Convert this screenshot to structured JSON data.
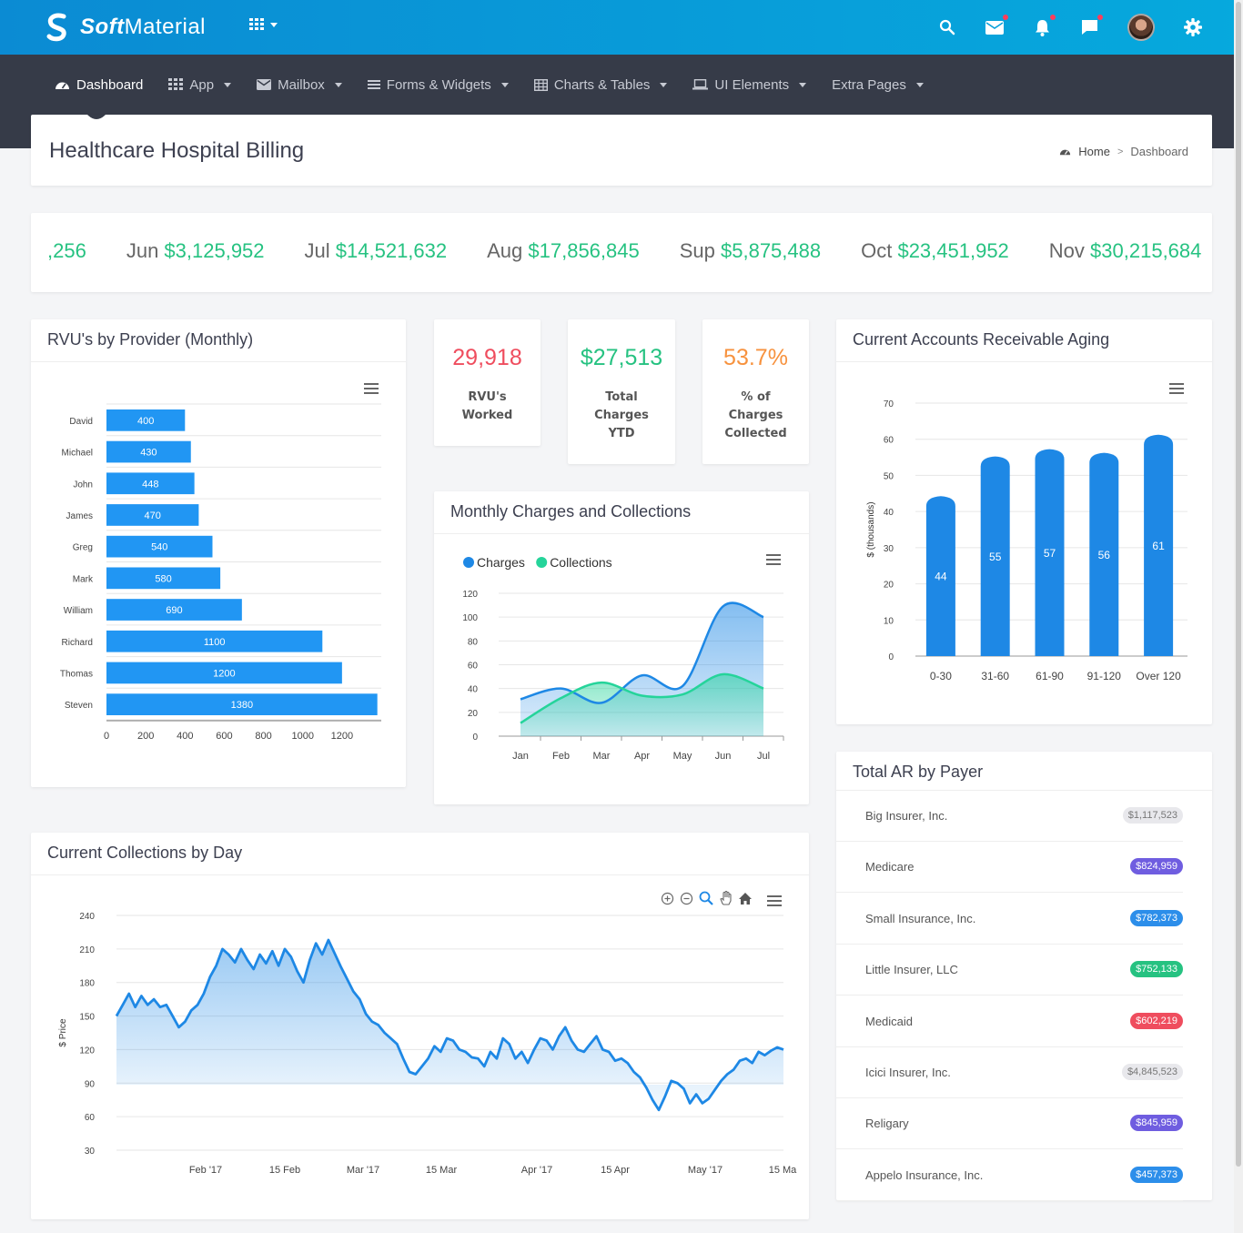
{
  "brand": {
    "bold": "Soft",
    "rest": "Material"
  },
  "nav": {
    "items": [
      {
        "label": "Dashboard",
        "icon": "dashboard-icon"
      },
      {
        "label": "App",
        "icon": "apps-icon"
      },
      {
        "label": "Mailbox",
        "icon": "mail-icon"
      },
      {
        "label": "Forms & Widgets",
        "icon": "list-icon"
      },
      {
        "label": "Charts & Tables",
        "icon": "table-icon"
      },
      {
        "label": "UI Elements",
        "icon": "laptop-icon"
      },
      {
        "label": "Extra Pages",
        "icon": ""
      }
    ]
  },
  "page": {
    "title": "Healthcare Hospital Billing",
    "breadcrumb_home": "Home",
    "breadcrumb_sep": ">",
    "breadcrumb_current": "Dashboard"
  },
  "ticker": {
    "items": [
      {
        "month": "",
        "value": ",256"
      },
      {
        "month": "Jun",
        "value": "$3,125,952"
      },
      {
        "month": "Jul",
        "value": "$14,521,632"
      },
      {
        "month": "Aug",
        "value": "$17,856,845"
      },
      {
        "month": "Sup",
        "value": "$5,875,488"
      },
      {
        "month": "Oct",
        "value": "$23,451,952"
      },
      {
        "month": "Nov",
        "value": "$30,215,684"
      }
    ]
  },
  "stats": {
    "rvus": {
      "value": "29,918",
      "label1": "RVU's",
      "label2": "Worked",
      "color": "#ef4d5e"
    },
    "charges": {
      "value": "$27,513",
      "label1": "Total",
      "label2": "Charges",
      "label3": "YTD",
      "color": "#26c281"
    },
    "collected": {
      "value": "53.7%",
      "label1": "% of",
      "label2": "Charges",
      "label3": "Collected",
      "color": "#f7923e"
    }
  },
  "rvu_card": {
    "title": "RVU's by Provider (Monthly)"
  },
  "monthly_card": {
    "title": "Monthly Charges and Collections"
  },
  "ar_card": {
    "title": "Current Accounts Receivable Aging"
  },
  "collections_card": {
    "title": "Current Collections by Day"
  },
  "payer_card": {
    "title": "Total AR by Payer",
    "rows": [
      {
        "name": "Big Insurer, Inc.",
        "amount": "$1,117,523",
        "color": "#e8e8ec",
        "text": "#777"
      },
      {
        "name": "Medicare",
        "amount": "$824,959",
        "color": "#6f5de0",
        "text": "#fff"
      },
      {
        "name": "Small Insurance, Inc.",
        "amount": "$782,373",
        "color": "#2c8eea",
        "text": "#fff"
      },
      {
        "name": "Little Insurer, LLC",
        "amount": "$752,133",
        "color": "#26c281",
        "text": "#fff"
      },
      {
        "name": "Medicaid",
        "amount": "$602,219",
        "color": "#ef4d5e",
        "text": "#fff"
      },
      {
        "name": "Icici Insurer, Inc.",
        "amount": "$4,845,523",
        "color": "#e8e8ec",
        "text": "#777"
      },
      {
        "name": "Religary",
        "amount": "$845,959",
        "color": "#6f5de0",
        "text": "#fff"
      },
      {
        "name": "Appelo Insurance, Inc.",
        "amount": "$457,373",
        "color": "#2c8eea",
        "text": "#fff"
      }
    ]
  },
  "chart_data": [
    {
      "type": "bar",
      "orientation": "horizontal",
      "title": "RVU's by Provider (Monthly)",
      "categories": [
        "David",
        "Michael",
        "John",
        "James",
        "Greg",
        "Mark",
        "William",
        "Richard",
        "Thomas",
        "Steven"
      ],
      "values": [
        400,
        430,
        448,
        470,
        540,
        580,
        690,
        1100,
        1200,
        1380
      ],
      "xticks": [
        0,
        200,
        400,
        600,
        800,
        1000,
        1200
      ],
      "xlim": [
        0,
        1400
      ],
      "color": "#2196f3"
    },
    {
      "type": "area",
      "title": "Monthly Charges and Collections",
      "categories": [
        "Jan",
        "Feb",
        "Mar",
        "Apr",
        "May",
        "Jun",
        "Jul"
      ],
      "series": [
        {
          "name": "Charges",
          "values": [
            31,
            40,
            28,
            51,
            42,
            109,
            100
          ],
          "color": "#1e88e5"
        },
        {
          "name": "Collections",
          "values": [
            11,
            32,
            45,
            34,
            35,
            52,
            40
          ],
          "color": "#25d49a"
        }
      ],
      "ylim": [
        0,
        120
      ],
      "yticks": [
        0,
        20,
        40,
        60,
        80,
        100,
        120
      ],
      "legend": "top-left"
    },
    {
      "type": "bar",
      "title": "Current Accounts Receivable Aging",
      "categories": [
        "0-30",
        "31-60",
        "61-90",
        "91-120",
        "Over 120"
      ],
      "values": [
        44,
        55,
        57,
        56,
        61
      ],
      "ylabel": "$ (thousands)",
      "ylim": [
        0,
        70
      ],
      "yticks": [
        0,
        10,
        20,
        30,
        40,
        50,
        60,
        70
      ],
      "color": "#1e88e5"
    },
    {
      "type": "area",
      "title": "Current Collections by Day",
      "ylabel": "$ Price",
      "ylim": [
        30,
        240
      ],
      "yticks": [
        30,
        60,
        90,
        120,
        150,
        180,
        210,
        240
      ],
      "xticks": [
        "Feb '17",
        "15 Feb",
        "Mar '17",
        "15 Mar",
        "Apr '17",
        "15 Apr",
        "May '17",
        "15 Ma"
      ],
      "x_start": "2017-01-18",
      "x_end": "2017-05-16",
      "values": [
        150,
        160,
        170,
        158,
        168,
        160,
        165,
        158,
        160,
        150,
        140,
        145,
        155,
        160,
        170,
        185,
        195,
        210,
        205,
        198,
        210,
        200,
        192,
        205,
        197,
        208,
        195,
        210,
        203,
        190,
        180,
        200,
        215,
        205,
        218,
        206,
        194,
        183,
        172,
        165,
        152,
        145,
        142,
        135,
        130,
        125,
        112,
        100,
        98,
        105,
        112,
        123,
        118,
        130,
        128,
        120,
        118,
        113,
        112,
        105,
        118,
        112,
        130,
        125,
        112,
        118,
        108,
        120,
        130,
        128,
        120,
        132,
        140,
        128,
        120,
        118,
        125,
        132,
        120,
        118,
        110,
        112,
        108,
        100,
        95,
        86,
        75,
        66,
        78,
        92,
        90,
        85,
        72,
        80,
        72,
        76,
        84,
        92,
        98,
        102,
        110,
        112,
        108,
        118,
        115,
        119,
        122,
        120
      ],
      "color": "#1e88e5"
    }
  ],
  "colors": {
    "accent": "#0b8bd3",
    "nav_bg": "#363b48",
    "green": "#26c281"
  }
}
